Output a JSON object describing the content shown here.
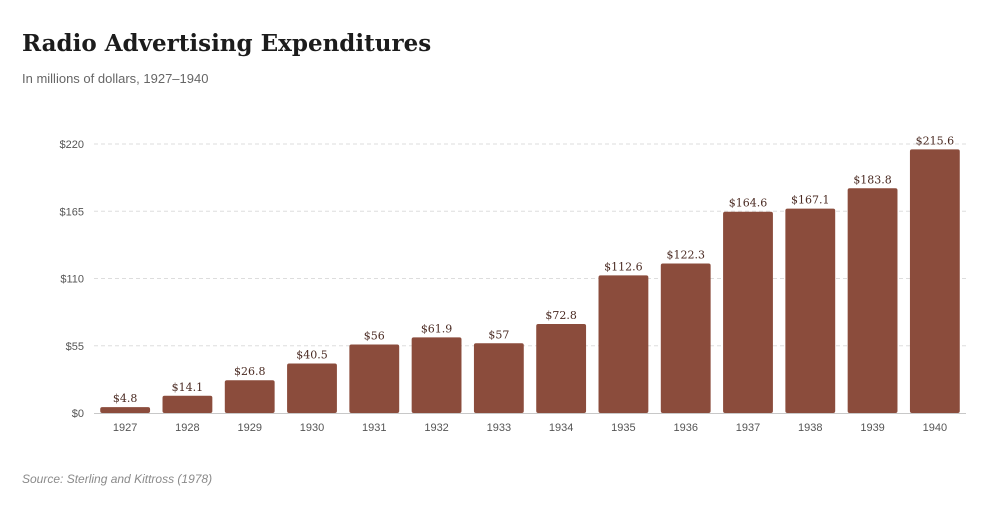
{
  "header": {
    "title": "Radio Advertising Expenditures",
    "subtitle": "In millions of dollars, 1927–1940"
  },
  "footer": {
    "source": "Source: Sterling and Kittross (1978)"
  },
  "colors": {
    "bar": "#8b4c3c",
    "grid": "#dddddd",
    "axis": "#c8c8c8"
  },
  "chart_data": {
    "type": "bar",
    "title": "Radio Advertising Expenditures",
    "subtitle": "In millions of dollars, 1927–1940",
    "xlabel": "",
    "ylabel": "",
    "categories": [
      "1927",
      "1928",
      "1929",
      "1930",
      "1931",
      "1932",
      "1933",
      "1934",
      "1935",
      "1936",
      "1937",
      "1938",
      "1939",
      "1940"
    ],
    "values": [
      4.8,
      14.1,
      26.8,
      40.5,
      56,
      61.9,
      57,
      72.8,
      112.6,
      122.3,
      164.6,
      167.1,
      183.8,
      215.6
    ],
    "value_labels": [
      "$4.8",
      "$14.1",
      "$26.8",
      "$40.5",
      "$56",
      "$61.9",
      "$57",
      "$72.8",
      "$112.6",
      "$122.3",
      "$164.6",
      "$167.1",
      "$183.8",
      "$215.6"
    ],
    "yticks": [
      0,
      55,
      110,
      165,
      220
    ],
    "ytick_labels": [
      "$0",
      "$55",
      "$110",
      "$165",
      "$220"
    ],
    "ylim": [
      0,
      220
    ],
    "grid": true
  }
}
